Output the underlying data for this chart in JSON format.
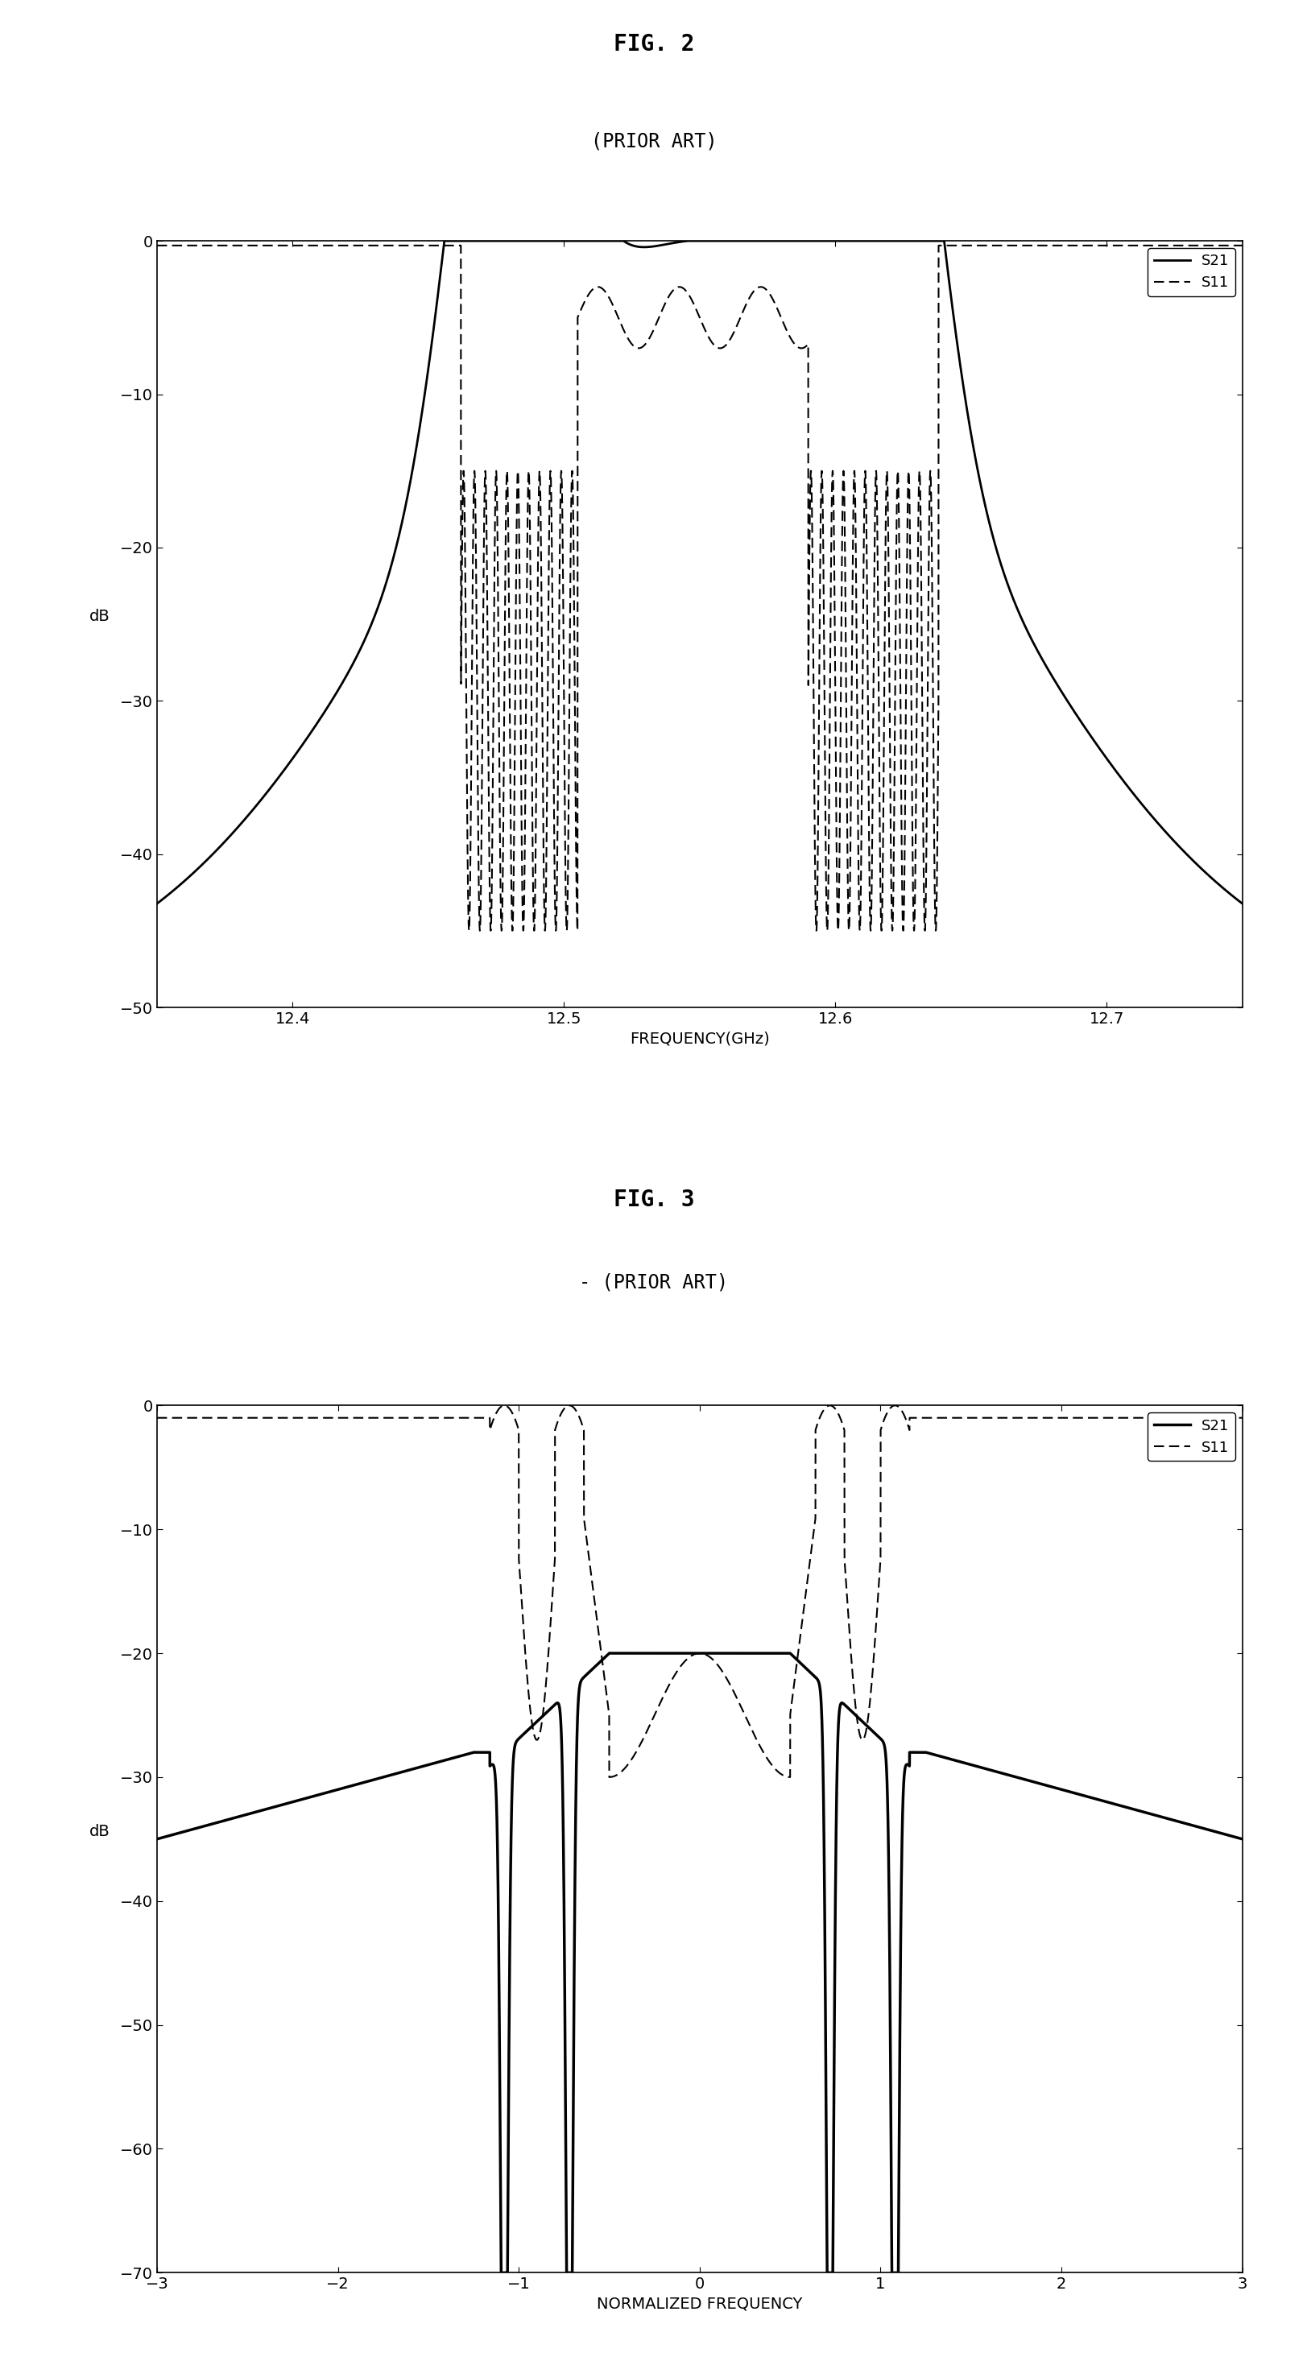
{
  "fig2": {
    "title": "FIG. 2",
    "subtitle": "(PRIOR ART)",
    "xlabel": "FREQUENCY(GHz)",
    "ylabel": "dB",
    "xlim": [
      12.35,
      12.75
    ],
    "ylim": [
      -50,
      0
    ],
    "xticks": [
      12.4,
      12.5,
      12.6,
      12.7
    ],
    "yticks": [
      0,
      -10,
      -20,
      -30,
      -40,
      -50
    ]
  },
  "fig3": {
    "title": "FIG. 3",
    "subtitle": "- (PRIOR ART)",
    "xlabel": "NORMALIZED FREQUENCY",
    "ylabel": "dB",
    "xlim": [
      -3,
      3
    ],
    "ylim": [
      -70,
      0
    ],
    "xticks": [
      -3,
      -2,
      -1,
      0,
      1,
      2,
      3
    ],
    "yticks": [
      0,
      -10,
      -20,
      -30,
      -40,
      -50,
      -60,
      -70
    ]
  },
  "bg_color": "#ffffff",
  "line_color": "#000000"
}
